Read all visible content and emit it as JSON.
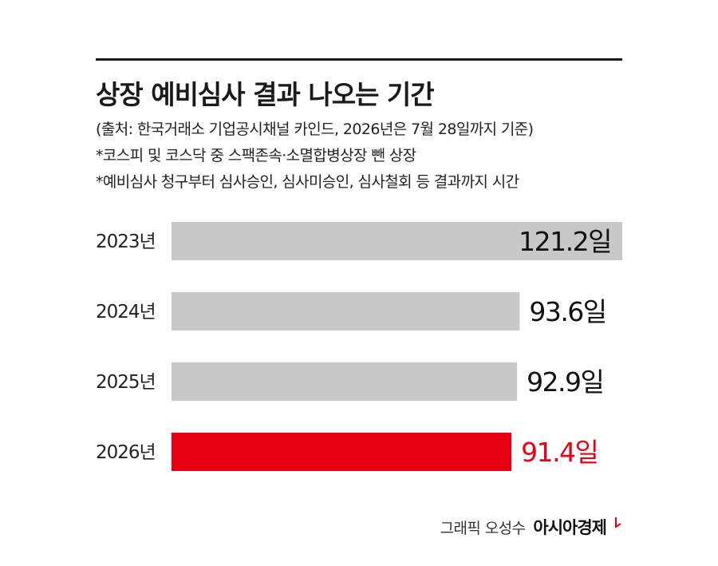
{
  "title": "상장 예비심사 결과 나오는 기간",
  "notes": [
    "(출처: 한국거래소 기업공시채널 카인드, 2026년은 7월 28일까지 기준)",
    "*코스피 및 코스닥 중 스팩존속·소멸합병상장 뺀 상장",
    "*예비심사 청구부터 심사승인, 심사미승인, 심사철회 등 결과까지 시간"
  ],
  "chart_data": {
    "type": "bar",
    "orientation": "horizontal",
    "categories": [
      "2023년",
      "2024년",
      "2025년",
      "2026년"
    ],
    "values": [
      121.2,
      93.6,
      92.9,
      91.4
    ],
    "value_labels": [
      "121.2일",
      "93.6일",
      "92.9일",
      "91.4일"
    ],
    "unit": "일",
    "highlight_index": 3,
    "bar_color": "#c8c8c8",
    "highlight_color": "#e60012",
    "grid": false,
    "legend": false
  },
  "footer": {
    "credit": "그래픽 오성수",
    "brand": "아시아경제",
    "brand_color": "#e60012"
  }
}
